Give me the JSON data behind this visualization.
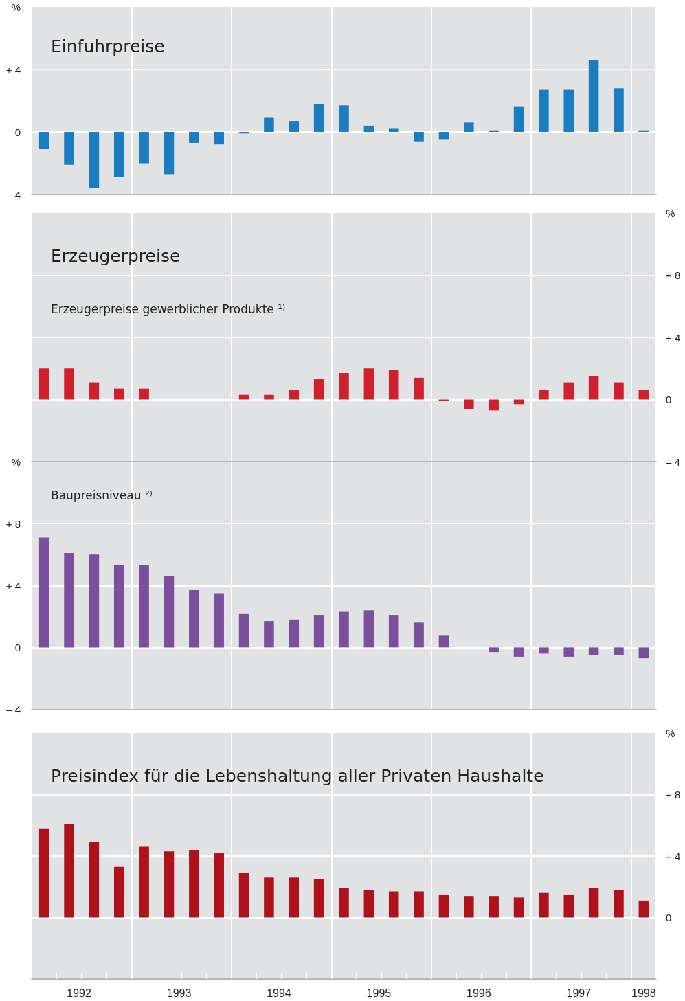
{
  "chart_data": [
    {
      "type": "bar",
      "title": "Einfuhrpreise",
      "categories": [
        null,
        "1992",
        null,
        null,
        null,
        "1993",
        null,
        null,
        null,
        "1994",
        null,
        null,
        null,
        "1995",
        null,
        null,
        null,
        "1996",
        null,
        null,
        null,
        "1997",
        null,
        null,
        "1998"
      ],
      "series": [
        {
          "color": "#1a7cc1",
          "values": [
            -1.1,
            -2.1,
            -3.6,
            -2.9,
            -2.0,
            -2.7,
            -0.7,
            -0.8,
            -0.1,
            0.9,
            0.7,
            1.8,
            1.7,
            0.4,
            0.2,
            -0.6,
            -0.5,
            0.6,
            0.1,
            1.6,
            2.7,
            2.7,
            4.6,
            2.8,
            0.1
          ]
        }
      ],
      "ylim": [
        -4,
        8
      ],
      "yticks": [
        {
          "value": -4,
          "label": "– 4"
        },
        0,
        {
          "value": 4,
          "label": "+ 4"
        },
        {
          "value": 8,
          "label": "%"
        }
      ],
      "grid": true,
      "tick_labels": "y"
    },
    {
      "type": "bar",
      "title": "Erzeugerpreise",
      "subtitle": "Erzeugerpreise gewerblicher Produkte ¹⁾",
      "categories": [
        null,
        "1992",
        null,
        null,
        null,
        "1993",
        null,
        null,
        null,
        "1994",
        null,
        null,
        null,
        "1995",
        null,
        null,
        null,
        "1996",
        null,
        null,
        null,
        "1997",
        null,
        null,
        "1998"
      ],
      "series": [
        {
          "color": "#d0202e",
          "axis": "y2",
          "values": [
            2.0,
            2.0,
            1.1,
            0.7,
            0.7,
            0,
            0,
            0,
            0.3,
            0.3,
            0.6,
            1.3,
            1.7,
            2.0,
            1.9,
            1.4,
            -0.1,
            -0.6,
            -0.7,
            -0.3,
            0.6,
            1.1,
            1.5,
            1.1,
            0.6
          ]
        }
      ],
      "y2lim": [
        -4,
        12
      ],
      "y2ticks": [
        {
          "value": -4,
          "label": "– 4"
        },
        0,
        {
          "value": 4,
          "label": "+ 4"
        },
        {
          "value": 8,
          "label": "+ 8"
        },
        {
          "value": 12,
          "label": "%"
        }
      ],
      "grid": true,
      "tick_labels": "y"
    },
    {
      "type": "bar",
      "title": "Baupreisniveau ²⁾",
      "categories": [
        null,
        "1992",
        null,
        null,
        null,
        "1993",
        null,
        null,
        null,
        "1994",
        null,
        null,
        null,
        "1995",
        null,
        null,
        null,
        "1996",
        null,
        null,
        null,
        "1997",
        null,
        null,
        "1998"
      ],
      "series": [
        {
          "color": "#7b4f9e",
          "values": [
            7.1,
            6.1,
            6.0,
            5.3,
            5.3,
            4.6,
            3.7,
            3.5,
            2.2,
            1.7,
            1.8,
            2.1,
            2.3,
            2.4,
            2.1,
            1.6,
            0.8,
            0,
            -0.3,
            -0.6,
            -0.4,
            -0.6,
            -0.5,
            -0.5,
            -0.7
          ]
        }
      ],
      "ylim": [
        -4,
        12
      ],
      "yticks": [
        {
          "value": -4,
          "label": "– 4"
        },
        0,
        {
          "value": 4,
          "label": "+ 4"
        },
        {
          "value": 8,
          "label": "+ 8"
        },
        {
          "value": 12,
          "label": "%"
        }
      ],
      "grid": true,
      "tick_labels": "y"
    },
    {
      "type": "bar",
      "title": "Preisindex für die Lebenshaltung aller Privaten Haushalte",
      "categories": [
        null,
        "1992",
        null,
        null,
        null,
        "1993",
        null,
        null,
        null,
        "1994",
        null,
        null,
        null,
        "1995",
        null,
        null,
        null,
        "1996",
        null,
        null,
        null,
        "1997",
        null,
        null,
        "1998"
      ],
      "series": [
        {
          "color": "#b0121b",
          "axis": "y2",
          "values": [
            5.8,
            6.1,
            4.9,
            3.3,
            4.6,
            4.3,
            4.4,
            4.2,
            2.9,
            2.6,
            2.6,
            2.5,
            1.9,
            1.8,
            1.7,
            1.7,
            1.5,
            1.4,
            1.4,
            1.3,
            1.6,
            1.5,
            1.9,
            1.8,
            1.1
          ]
        }
      ],
      "y2lim": [
        -4,
        12
      ],
      "y2ticks": [
        {
          "value": -4,
          "label": null
        },
        0,
        {
          "value": 4,
          "label": "+ 4"
        },
        {
          "value": 8,
          "label": "+ 8"
        },
        {
          "value": 12,
          "label": "%"
        }
      ],
      "grid": true
    }
  ]
}
